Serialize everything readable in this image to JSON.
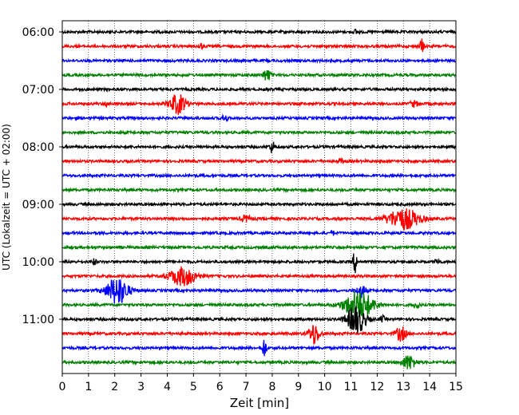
{
  "chart_data": {
    "type": "line",
    "xlabel": "Zeit  [min]",
    "ylabel": "UTC (Lokalzeit = UTC + 02:00)",
    "xlim": [
      0,
      15
    ],
    "x_ticks": [
      0,
      1,
      2,
      3,
      4,
      5,
      6,
      7,
      8,
      9,
      10,
      11,
      12,
      13,
      14,
      15
    ],
    "y_tick_labels": [
      "06:00",
      "07:00",
      "08:00",
      "09:00",
      "10:00",
      "11:00"
    ],
    "y_tick_rows": [
      0,
      4,
      8,
      12,
      16,
      20
    ],
    "row_interval_minutes": 15,
    "grid": "vertical dotted",
    "colors": [
      "#000000",
      "#ff0000",
      "#0000ff",
      "#008000"
    ],
    "traces": [
      {
        "start": "06:00",
        "color": "#000000",
        "events": [
          {
            "t": 11.2,
            "amp": 0.3,
            "dur": 0.2
          }
        ]
      },
      {
        "start": "06:15",
        "color": "#ff0000",
        "events": [
          {
            "t": 13.7,
            "amp": 1.0,
            "dur": 0.15
          },
          {
            "t": 5.3,
            "amp": 0.3,
            "dur": 0.2
          }
        ]
      },
      {
        "start": "06:30",
        "color": "#0000ff",
        "events": []
      },
      {
        "start": "06:45",
        "color": "#008000",
        "events": [
          {
            "t": 7.8,
            "amp": 0.8,
            "dur": 0.3
          }
        ]
      },
      {
        "start": "07:00",
        "color": "#000000",
        "events": []
      },
      {
        "start": "07:15",
        "color": "#ff0000",
        "events": [
          {
            "t": 4.4,
            "amp": 1.4,
            "dur": 0.6
          },
          {
            "t": 1.7,
            "amp": 0.5,
            "dur": 0.15
          },
          {
            "t": 13.4,
            "amp": 0.4,
            "dur": 0.3
          }
        ]
      },
      {
        "start": "07:30",
        "color": "#0000ff",
        "events": [
          {
            "t": 6.2,
            "amp": 0.5,
            "dur": 0.2
          }
        ]
      },
      {
        "start": "07:45",
        "color": "#008000",
        "events": []
      },
      {
        "start": "08:00",
        "color": "#000000",
        "events": [
          {
            "t": 8.0,
            "amp": 0.8,
            "dur": 0.2
          }
        ]
      },
      {
        "start": "08:15",
        "color": "#ff0000",
        "events": [
          {
            "t": 10.6,
            "amp": 0.3,
            "dur": 0.2
          }
        ]
      },
      {
        "start": "08:30",
        "color": "#0000ff",
        "events": []
      },
      {
        "start": "08:45",
        "color": "#008000",
        "events": []
      },
      {
        "start": "09:00",
        "color": "#000000",
        "events": []
      },
      {
        "start": "09:15",
        "color": "#ff0000",
        "events": [
          {
            "t": 13.0,
            "amp": 1.5,
            "dur": 1.2
          },
          {
            "t": 7.0,
            "amp": 0.4,
            "dur": 0.4
          }
        ]
      },
      {
        "start": "09:30",
        "color": "#0000ff",
        "events": [
          {
            "t": 10.3,
            "amp": 0.4,
            "dur": 0.1
          }
        ]
      },
      {
        "start": "09:45",
        "color": "#008000",
        "events": []
      },
      {
        "start": "10:00",
        "color": "#000000",
        "events": [
          {
            "t": 11.15,
            "amp": 1.6,
            "dur": 0.15
          },
          {
            "t": 1.2,
            "amp": 0.4,
            "dur": 0.2
          },
          {
            "t": 14.3,
            "amp": 0.4,
            "dur": 0.2
          }
        ]
      },
      {
        "start": "10:15",
        "color": "#ff0000",
        "events": [
          {
            "t": 4.6,
            "amp": 1.3,
            "dur": 1.0
          }
        ]
      },
      {
        "start": "10:30",
        "color": "#0000ff",
        "events": [
          {
            "t": 2.1,
            "amp": 2.0,
            "dur": 0.8
          },
          {
            "t": 11.4,
            "amp": 0.9,
            "dur": 0.3
          }
        ]
      },
      {
        "start": "10:45",
        "color": "#008000",
        "events": [
          {
            "t": 11.3,
            "amp": 2.0,
            "dur": 1.1
          },
          {
            "t": 13.5,
            "amp": 0.5,
            "dur": 0.2
          }
        ]
      },
      {
        "start": "11:00",
        "color": "#000000",
        "events": [
          {
            "t": 11.2,
            "amp": 2.0,
            "dur": 0.7
          },
          {
            "t": 12.2,
            "amp": 0.4,
            "dur": 0.2
          }
        ]
      },
      {
        "start": "11:15",
        "color": "#ff0000",
        "events": [
          {
            "t": 9.6,
            "amp": 1.5,
            "dur": 0.4
          },
          {
            "t": 12.9,
            "amp": 1.0,
            "dur": 0.4
          }
        ]
      },
      {
        "start": "11:30",
        "color": "#0000ff",
        "events": [
          {
            "t": 7.7,
            "amp": 1.4,
            "dur": 0.15
          }
        ]
      },
      {
        "start": "11:45",
        "color": "#008000",
        "events": [
          {
            "t": 13.2,
            "amp": 1.0,
            "dur": 0.5
          }
        ]
      }
    ]
  }
}
